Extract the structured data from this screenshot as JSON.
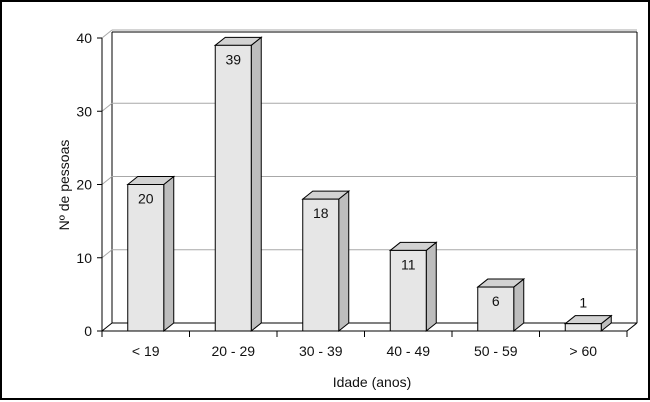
{
  "chart_data": {
    "type": "bar",
    "title": "",
    "xlabel": "Idade (anos)",
    "ylabel": "Nº de pessoas",
    "categories": [
      "< 19",
      "20 - 29",
      "30 - 39",
      "40 - 49",
      "50 - 59",
      "> 60"
    ],
    "values": [
      20,
      39,
      18,
      11,
      6,
      1
    ],
    "ylim": [
      0,
      40
    ],
    "yticks": [
      0,
      10,
      20,
      30,
      40
    ],
    "grid": true,
    "style": "3d",
    "colors": {
      "bar_front": "#e6e6e6",
      "bar_top": "#d2d2d2",
      "bar_side": "#bdbdbd",
      "grid": "#a8a8a8",
      "axis": "#000000"
    }
  }
}
